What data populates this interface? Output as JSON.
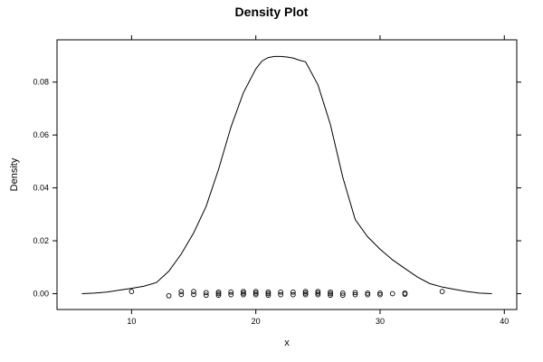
{
  "chart_data": {
    "type": "line",
    "title": "Density Plot",
    "xlabel": "x",
    "ylabel": "Density",
    "xlim": [
      4,
      41
    ],
    "ylim": [
      -0.006,
      0.096
    ],
    "x_ticks": [
      10,
      20,
      30,
      40
    ],
    "y_ticks": [
      0.0,
      0.02,
      0.04,
      0.06,
      0.08
    ],
    "x_tick_labels": [
      "10",
      "20",
      "30",
      "40"
    ],
    "y_tick_labels": [
      "0.00",
      "0.02",
      "0.04",
      "0.06",
      "0.08"
    ],
    "grid": false,
    "density_curve": {
      "x": [
        6,
        7,
        8,
        9,
        10,
        11,
        12,
        13,
        14,
        15,
        16,
        17,
        18,
        19,
        20,
        20.5,
        21,
        21.5,
        22,
        22.5,
        23,
        23.5,
        24,
        25,
        26,
        27,
        28,
        29,
        30,
        31,
        32,
        33,
        34,
        35,
        36,
        37,
        38,
        39
      ],
      "y": [
        0.0,
        0.0002,
        0.0006,
        0.0013,
        0.002,
        0.0028,
        0.0042,
        0.0085,
        0.015,
        0.023,
        0.033,
        0.047,
        0.063,
        0.076,
        0.085,
        0.088,
        0.0893,
        0.0897,
        0.0897,
        0.0895,
        0.0891,
        0.0883,
        0.0877,
        0.079,
        0.064,
        0.044,
        0.028,
        0.0215,
        0.0168,
        0.0128,
        0.0095,
        0.0063,
        0.0038,
        0.0025,
        0.0016,
        0.0008,
        0.0002,
        0.0
      ]
    },
    "rug_points": [
      {
        "x": 10,
        "y": 0.0008
      },
      {
        "x": 13,
        "y": -0.0008
      },
      {
        "x": 14,
        "y": 0.0008
      },
      {
        "x": 14,
        "y": -0.0003
      },
      {
        "x": 15,
        "y": 0.0008
      },
      {
        "x": 15,
        "y": -0.0003
      },
      {
        "x": 16,
        "y": 0.0004
      },
      {
        "x": 16,
        "y": -0.0006
      },
      {
        "x": 17,
        "y": 0.0006
      },
      {
        "x": 17,
        "y": 0.0
      },
      {
        "x": 17,
        "y": -0.0006
      },
      {
        "x": 18,
        "y": 0.0006
      },
      {
        "x": 18,
        "y": -0.0004
      },
      {
        "x": 19,
        "y": 0.0008
      },
      {
        "x": 19,
        "y": 0.0002
      },
      {
        "x": 19,
        "y": -0.0004
      },
      {
        "x": 20,
        "y": 0.0008
      },
      {
        "x": 20,
        "y": 0.0002
      },
      {
        "x": 20,
        "y": -0.0004
      },
      {
        "x": 21,
        "y": 0.0006
      },
      {
        "x": 21,
        "y": 0.0
      },
      {
        "x": 21,
        "y": -0.0006
      },
      {
        "x": 22,
        "y": 0.0006
      },
      {
        "x": 22,
        "y": -0.0004
      },
      {
        "x": 23,
        "y": 0.0006
      },
      {
        "x": 23,
        "y": -0.0004
      },
      {
        "x": 24,
        "y": 0.0008
      },
      {
        "x": 24,
        "y": 0.0002
      },
      {
        "x": 24,
        "y": -0.0004
      },
      {
        "x": 25,
        "y": 0.0008
      },
      {
        "x": 25,
        "y": 0.0002
      },
      {
        "x": 25,
        "y": -0.0004
      },
      {
        "x": 26,
        "y": 0.0006
      },
      {
        "x": 26,
        "y": 0.0
      },
      {
        "x": 26,
        "y": -0.0006
      },
      {
        "x": 27,
        "y": 0.0002
      },
      {
        "x": 27,
        "y": -0.0006
      },
      {
        "x": 28,
        "y": 0.0004
      },
      {
        "x": 28,
        "y": -0.0004
      },
      {
        "x": 29,
        "y": 0.0002
      },
      {
        "x": 29,
        "y": -0.0004
      },
      {
        "x": 30,
        "y": 0.0002
      },
      {
        "x": 30,
        "y": -0.0004
      },
      {
        "x": 31,
        "y": 0.0
      },
      {
        "x": 32,
        "y": 0.0002
      },
      {
        "x": 32,
        "y": -0.0002
      },
      {
        "x": 35,
        "y": 0.0008
      }
    ],
    "colors": {
      "line": "#000000",
      "points": "#000000",
      "frame": "#000000"
    }
  }
}
